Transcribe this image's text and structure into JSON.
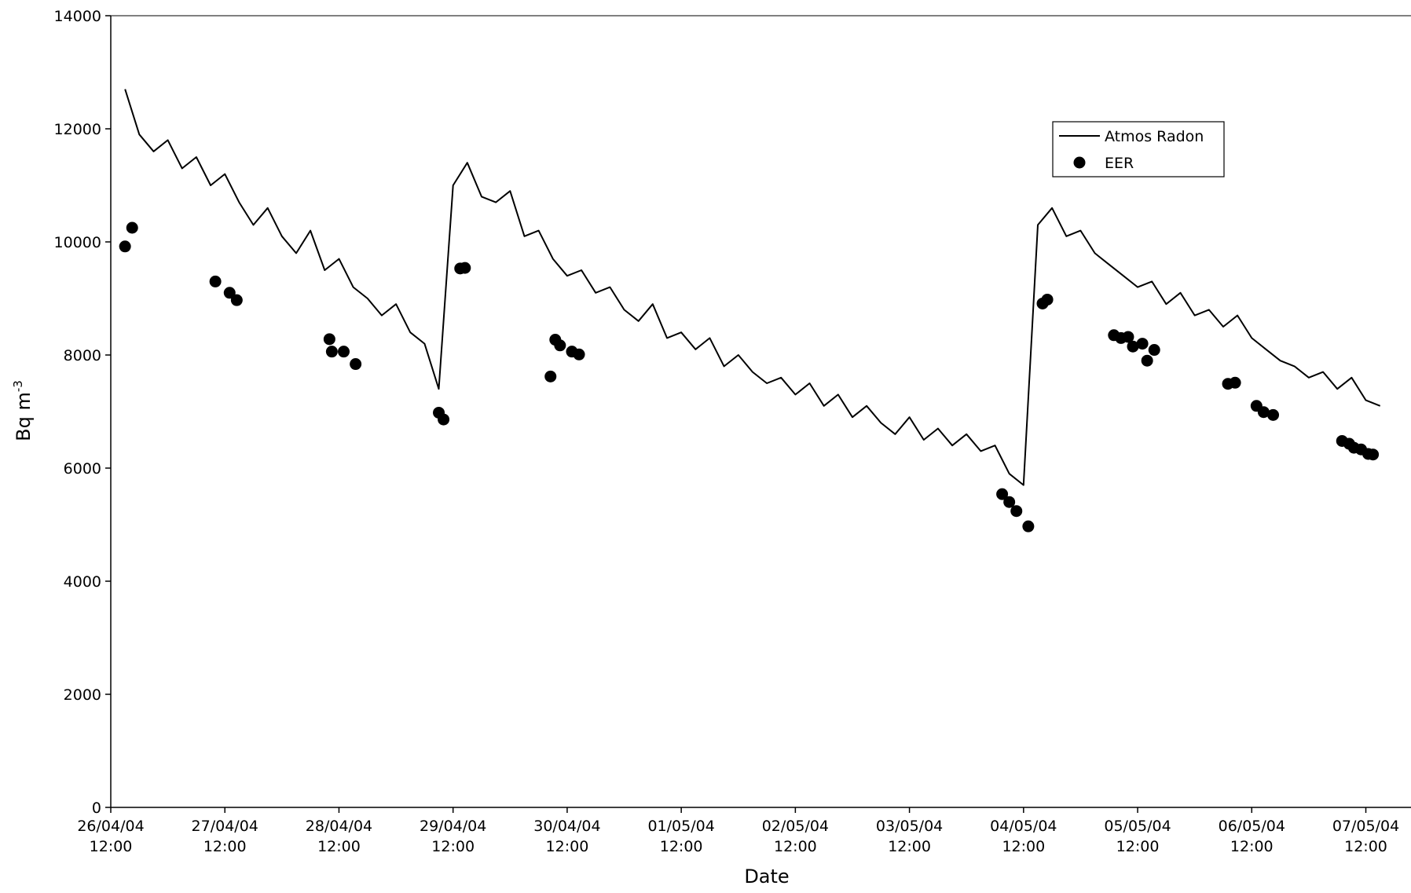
{
  "chart_data": {
    "type": "line",
    "x_label": "Date",
    "y_label": {
      "text": "Bq m",
      "superscript": "-3"
    },
    "xlim": [
      "2004-04-26T12:00",
      "2004-05-07T21:30"
    ],
    "xticks": [
      {
        "value": "2004-04-26T12:00",
        "label": "26/04/04 12:00"
      },
      {
        "value": "2004-04-27T12:00",
        "label": "27/04/04 12:00"
      },
      {
        "value": "2004-04-28T12:00",
        "label": "28/04/04 12:00"
      },
      {
        "value": "2004-04-29T12:00",
        "label": "29/04/04 12:00"
      },
      {
        "value": "2004-04-30T12:00",
        "label": "30/04/04 12:00"
      },
      {
        "value": "2004-05-01T12:00",
        "label": "01/05/04 12:00"
      },
      {
        "value": "2004-05-02T12:00",
        "label": "02/05/04 12:00"
      },
      {
        "value": "2004-05-03T12:00",
        "label": "03/05/04 12:00"
      },
      {
        "value": "2004-05-04T12:00",
        "label": "04/05/04 12:00"
      },
      {
        "value": "2004-05-05T12:00",
        "label": "05/05/04 12:00"
      },
      {
        "value": "2004-05-06T12:00",
        "label": "06/05/04 12:00"
      },
      {
        "value": "2004-05-07T12:00",
        "label": "07/05/04 12:00"
      }
    ],
    "ylim": [
      0,
      14000
    ],
    "yticks": [
      0,
      2000,
      4000,
      6000,
      8000,
      10000,
      12000,
      14000
    ],
    "grid": false,
    "legend": "upper-right",
    "series": [
      {
        "name": "Atmos Radon",
        "color": "#000000",
        "x": [
          "2004-04-26T15:00",
          "2004-04-26T18:00",
          "2004-04-26T21:00",
          "2004-04-27T00:00",
          "2004-04-27T03:00",
          "2004-04-27T06:00",
          "2004-04-27T09:00",
          "2004-04-27T12:00",
          "2004-04-27T15:00",
          "2004-04-27T18:00",
          "2004-04-27T21:00",
          "2004-04-28T00:00",
          "2004-04-28T03:00",
          "2004-04-28T06:00",
          "2004-04-28T09:00",
          "2004-04-28T12:00",
          "2004-04-28T15:00",
          "2004-04-28T18:00",
          "2004-04-28T21:00",
          "2004-04-29T00:00",
          "2004-04-29T03:00",
          "2004-04-29T06:00",
          "2004-04-29T09:00",
          "2004-04-29T12:00",
          "2004-04-29T15:00",
          "2004-04-29T18:00",
          "2004-04-29T21:00",
          "2004-04-30T00:00",
          "2004-04-30T03:00",
          "2004-04-30T06:00",
          "2004-04-30T09:00",
          "2004-04-30T12:00",
          "2004-04-30T15:00",
          "2004-04-30T18:00",
          "2004-04-30T21:00",
          "2004-05-01T00:00",
          "2004-05-01T03:00",
          "2004-05-01T06:00",
          "2004-05-01T09:00",
          "2004-05-01T12:00",
          "2004-05-01T15:00",
          "2004-05-01T18:00",
          "2004-05-01T21:00",
          "2004-05-02T00:00",
          "2004-05-02T03:00",
          "2004-05-02T06:00",
          "2004-05-02T09:00",
          "2004-05-02T12:00",
          "2004-05-02T15:00",
          "2004-05-02T18:00",
          "2004-05-02T21:00",
          "2004-05-03T00:00",
          "2004-05-03T03:00",
          "2004-05-03T06:00",
          "2004-05-03T09:00",
          "2004-05-03T12:00",
          "2004-05-03T15:00",
          "2004-05-03T18:00",
          "2004-05-03T21:00",
          "2004-05-04T00:00",
          "2004-05-04T03:00",
          "2004-05-04T06:00",
          "2004-05-04T09:00",
          "2004-05-04T12:00",
          "2004-05-04T15:00",
          "2004-05-04T18:00",
          "2004-05-04T21:00",
          "2004-05-05T00:00",
          "2004-05-05T03:00",
          "2004-05-05T06:00",
          "2004-05-05T09:00",
          "2004-05-05T12:00",
          "2004-05-05T15:00",
          "2004-05-05T18:00",
          "2004-05-05T21:00",
          "2004-05-06T00:00",
          "2004-05-06T03:00",
          "2004-05-06T06:00",
          "2004-05-06T09:00",
          "2004-05-06T12:00",
          "2004-05-06T15:00",
          "2004-05-06T18:00",
          "2004-05-06T21:00",
          "2004-05-07T00:00",
          "2004-05-07T03:00",
          "2004-05-07T06:00",
          "2004-05-07T09:00",
          "2004-05-07T12:00",
          "2004-05-07T15:00"
        ],
        "values": [
          12700,
          11900,
          11600,
          11800,
          11300,
          11500,
          11000,
          11200,
          10700,
          10300,
          10600,
          10100,
          9800,
          10200,
          9500,
          9700,
          9200,
          9000,
          8700,
          8900,
          8400,
          8200,
          7400,
          11000,
          11400,
          10800,
          10700,
          10900,
          10100,
          10200,
          9700,
          9400,
          9500,
          9100,
          9200,
          8800,
          8600,
          8900,
          8300,
          8400,
          8100,
          8300,
          7800,
          8000,
          7700,
          7500,
          7600,
          7300,
          7500,
          7100,
          7300,
          6900,
          7100,
          6800,
          6600,
          6900,
          6500,
          6700,
          6400,
          6600,
          6300,
          6400,
          5900,
          5700,
          10300,
          10600,
          10100,
          10200,
          9800,
          9600,
          9400,
          9200,
          9300,
          8900,
          9100,
          8700,
          8800,
          8500,
          8700,
          8300,
          8100,
          7900,
          7800,
          7600,
          7700,
          7400,
          7600,
          7200,
          7100
        ]
      },
      {
        "name": "EER",
        "color": "#000000",
        "type": "scatter",
        "x": [
          "2004-04-26T15:00",
          "2004-04-26T16:30",
          "2004-04-27T10:00",
          "2004-04-27T13:00",
          "2004-04-27T14:30",
          "2004-04-28T10:00",
          "2004-04-28T10:30",
          "2004-04-28T13:00",
          "2004-04-28T15:30",
          "2004-04-29T09:00",
          "2004-04-29T10:00",
          "2004-04-29T13:30",
          "2004-04-29T14:30",
          "2004-04-30T08:30",
          "2004-04-30T09:30",
          "2004-04-30T10:30",
          "2004-04-30T13:00",
          "2004-04-30T14:30",
          "2004-05-04T07:30",
          "2004-05-04T09:00",
          "2004-05-04T10:30",
          "2004-05-04T13:00",
          "2004-05-04T16:00",
          "2004-05-04T17:00",
          "2004-05-05T07:00",
          "2004-05-05T08:30",
          "2004-05-05T10:00",
          "2004-05-05T11:00",
          "2004-05-05T13:00",
          "2004-05-05T14:00",
          "2004-05-05T15:30",
          "2004-05-06T07:00",
          "2004-05-06T08:30",
          "2004-05-06T13:00",
          "2004-05-06T14:30",
          "2004-05-06T16:30",
          "2004-05-07T07:00",
          "2004-05-07T08:30",
          "2004-05-07T09:30",
          "2004-05-07T11:00",
          "2004-05-07T12:30",
          "2004-05-07T13:30"
        ],
        "values": [
          9920,
          10250,
          9300,
          9100,
          8970,
          8280,
          8060,
          8060,
          7840,
          6980,
          6860,
          9530,
          9540,
          7620,
          8270,
          8170,
          8060,
          8010,
          5540,
          5400,
          5240,
          4970,
          8910,
          8980,
          8350,
          8300,
          8320,
          8150,
          8200,
          7900,
          8090,
          7490,
          7510,
          7100,
          6990,
          6940,
          6480,
          6430,
          6360,
          6330,
          6250,
          6240
        ]
      }
    ]
  }
}
